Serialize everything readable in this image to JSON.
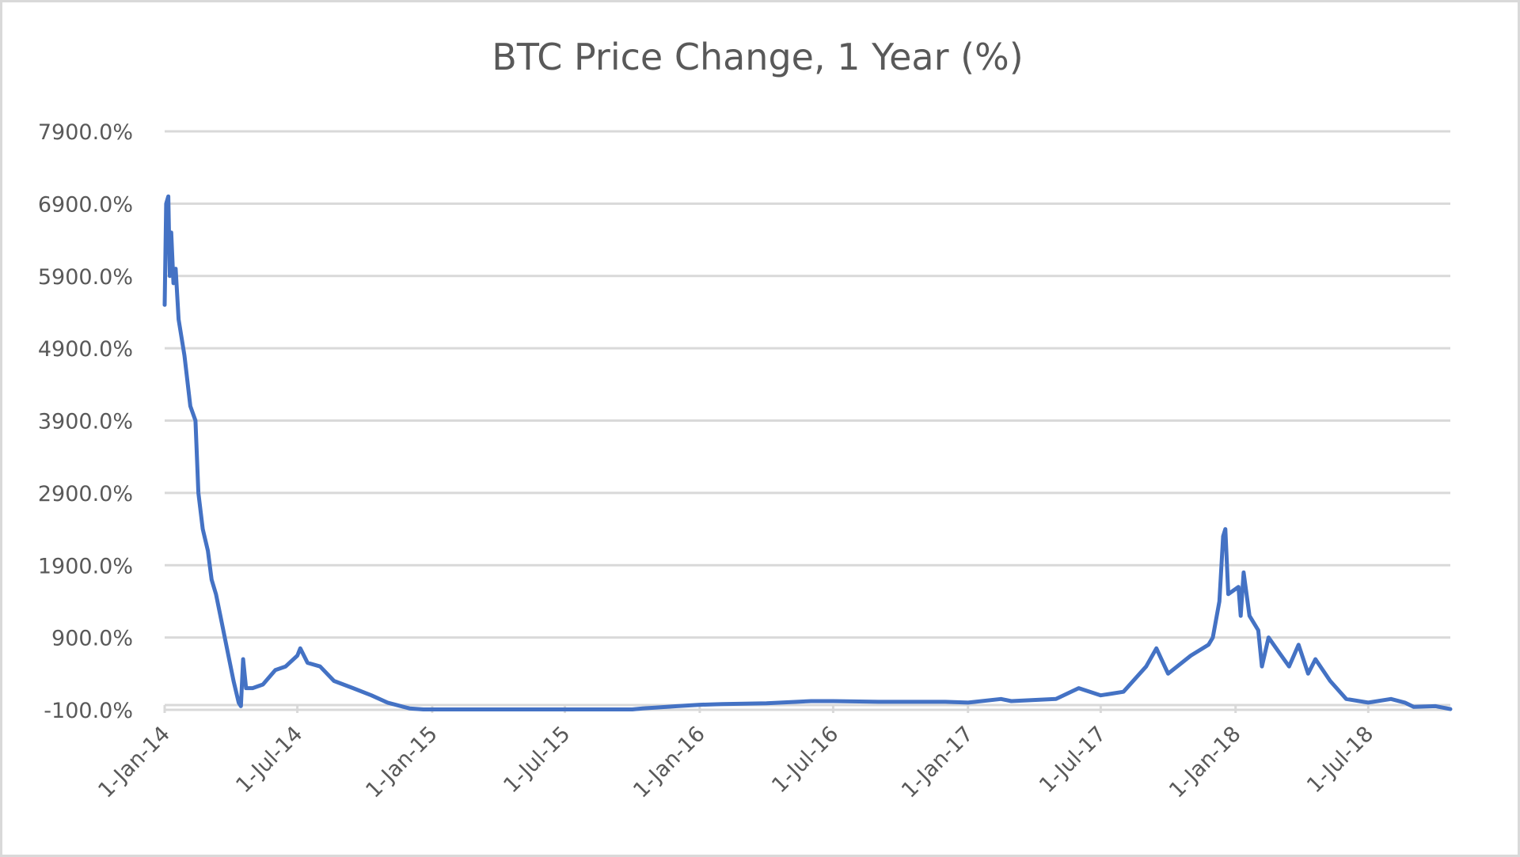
{
  "chart_data": {
    "type": "line",
    "title": "BTC Price Change, 1 Year (%)",
    "xlabel": "",
    "ylabel": "",
    "ylim": [
      -100,
      7900
    ],
    "y_ticks": [
      "-100.0%",
      "900.0%",
      "1900.0%",
      "2900.0%",
      "3900.0%",
      "4900.0%",
      "5900.0%",
      "6900.0%",
      "7900.0%"
    ],
    "y_tick_values": [
      -100,
      900,
      1900,
      2900,
      3900,
      4900,
      5900,
      6900,
      7900
    ],
    "x_ticks": [
      "1-Jan-14",
      "1-Jul-14",
      "1-Jan-15",
      "1-Jul-15",
      "1-Jan-16",
      "1-Jul-16",
      "1-Jan-17",
      "1-Jul-17",
      "1-Jan-18",
      "1-Jul-18"
    ],
    "x_tick_dates": [
      "2014-01-01",
      "2014-07-01",
      "2015-01-01",
      "2015-07-01",
      "2016-01-01",
      "2016-07-01",
      "2017-01-01",
      "2017-07-01",
      "2018-01-01",
      "2018-07-01"
    ],
    "xlim": [
      "2014-01-01",
      "2018-10-21"
    ],
    "grid": true,
    "legend": "none",
    "line_color": "#4472C4",
    "grid_color": "#d9d9d9",
    "series": [
      {
        "x": [
          "2014-01-01",
          "2014-01-03",
          "2014-01-06",
          "2014-01-08",
          "2014-01-10",
          "2014-01-13",
          "2014-01-16",
          "2014-01-20",
          "2014-01-28",
          "2014-02-05",
          "2014-02-12",
          "2014-02-16",
          "2014-02-22",
          "2014-03-01",
          "2014-03-06",
          "2014-03-12",
          "2014-03-18",
          "2014-03-28",
          "2014-04-05",
          "2014-04-12",
          "2014-04-15",
          "2014-04-18",
          "2014-04-22",
          "2014-05-01",
          "2014-05-15",
          "2014-06-01",
          "2014-06-15",
          "2014-07-01",
          "2014-07-05",
          "2014-07-15",
          "2014-08-01",
          "2014-08-20",
          "2014-09-15",
          "2014-10-10",
          "2014-11-01",
          "2014-12-01",
          "2014-12-20",
          "2015-10-01",
          "2015-10-15",
          "2015-11-01",
          "2015-12-01",
          "2016-01-01",
          "2016-02-01",
          "2016-04-01",
          "2016-06-01",
          "2016-07-01",
          "2016-09-01",
          "2016-12-01",
          "2017-01-01",
          "2017-02-15",
          "2017-03-01",
          "2017-05-01",
          "2017-06-01",
          "2017-07-01",
          "2017-08-01",
          "2017-09-01",
          "2017-09-15",
          "2017-10-01",
          "2017-11-01",
          "2017-11-25",
          "2017-12-01",
          "2017-12-10",
          "2017-12-15",
          "2017-12-18",
          "2017-12-22",
          "2018-01-05",
          "2018-01-08",
          "2018-01-12",
          "2018-01-20",
          "2018-02-01",
          "2018-02-06",
          "2018-02-15",
          "2018-03-01",
          "2018-03-15",
          "2018-03-28",
          "2018-04-10",
          "2018-04-20",
          "2018-05-10",
          "2018-06-01",
          "2018-07-01",
          "2018-08-01",
          "2018-08-20",
          "2018-09-01",
          "2018-10-01",
          "2018-10-21"
        ],
        "y": [
          5500,
          6900,
          7000,
          5900,
          6500,
          5800,
          6000,
          5300,
          4800,
          4100,
          3900,
          2900,
          2400,
          2100,
          1700,
          1500,
          1200,
          700,
          300,
          0,
          -50,
          600,
          200,
          200,
          250,
          450,
          500,
          650,
          750,
          550,
          500,
          300,
          200,
          100,
          0,
          -80,
          -95,
          -95,
          -80,
          -70,
          -50,
          -30,
          -20,
          -10,
          20,
          20,
          10,
          10,
          0,
          50,
          20,
          50,
          200,
          100,
          150,
          500,
          750,
          400,
          650,
          800,
          900,
          1400,
          2300,
          2400,
          1500,
          1600,
          1200,
          1800,
          1200,
          1000,
          500,
          900,
          700,
          500,
          800,
          400,
          600,
          300,
          50,
          0,
          50,
          0,
          -60,
          -50,
          -90
        ]
      }
    ]
  }
}
